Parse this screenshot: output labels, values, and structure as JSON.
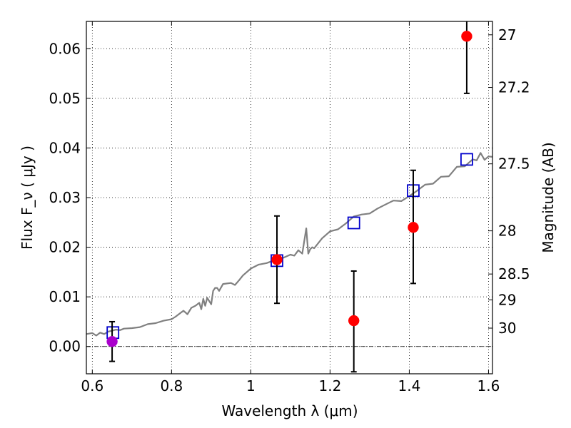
{
  "chart_data": {
    "type": "scatter",
    "xlabel": "Wavelength  λ (μm)",
    "ylabel": "Flux  F_ν  ( μJy )",
    "y2label": "Magnitude (AB)",
    "xlim": [
      0.585,
      1.61
    ],
    "ylim": [
      -0.0055,
      0.0655
    ],
    "grid": true,
    "x_ticks": [
      {
        "value": 0.6,
        "label": "0.6"
      },
      {
        "value": 0.8,
        "label": "0.8"
      },
      {
        "value": 1.0,
        "label": "1"
      },
      {
        "value": 1.2,
        "label": "1.2"
      },
      {
        "value": 1.4,
        "label": "1.4"
      },
      {
        "value": 1.6,
        "label": "1.6"
      }
    ],
    "y_ticks": [
      {
        "value": 0.0,
        "label": "0.00"
      },
      {
        "value": 0.01,
        "label": "0.01"
      },
      {
        "value": 0.02,
        "label": "0.02"
      },
      {
        "value": 0.03,
        "label": "0.03"
      },
      {
        "value": 0.04,
        "label": "0.04"
      },
      {
        "value": 0.05,
        "label": "0.05"
      },
      {
        "value": 0.06,
        "label": "0.06"
      }
    ],
    "y2_ticks": [
      {
        "flux": 0.0628,
        "label": "27"
      },
      {
        "flux": 0.0522,
        "label": "27.2"
      },
      {
        "flux": 0.0368,
        "label": "27.5"
      },
      {
        "flux": 0.0233,
        "label": "28"
      },
      {
        "flux": 0.0146,
        "label": "28.5"
      },
      {
        "flux": 0.0094,
        "label": "29"
      },
      {
        "flux": 0.0037,
        "label": "30"
      }
    ],
    "series": [
      {
        "style": "line",
        "color": "#808080",
        "x": [
          0.585,
          0.6,
          0.61,
          0.62,
          0.63,
          0.64,
          0.65,
          0.66,
          0.67,
          0.68,
          0.7,
          0.72,
          0.74,
          0.76,
          0.78,
          0.8,
          0.81,
          0.82,
          0.83,
          0.84,
          0.85,
          0.86,
          0.87,
          0.875,
          0.88,
          0.885,
          0.89,
          0.9,
          0.905,
          0.91,
          0.915,
          0.92,
          0.93,
          0.94,
          0.95,
          0.96,
          0.97,
          0.98,
          1.0,
          1.02,
          1.04,
          1.06,
          1.07,
          1.08,
          1.1,
          1.11,
          1.12,
          1.13,
          1.14,
          1.145,
          1.15,
          1.155,
          1.16,
          1.18,
          1.2,
          1.22,
          1.24,
          1.26,
          1.28,
          1.3,
          1.32,
          1.34,
          1.36,
          1.38,
          1.4,
          1.42,
          1.44,
          1.46,
          1.48,
          1.5,
          1.52,
          1.54,
          1.56,
          1.57,
          1.58,
          1.59,
          1.6,
          1.61
        ],
        "y": [
          0.0025,
          0.0027,
          0.0022,
          0.0028,
          0.0025,
          0.003,
          0.0032,
          0.0034,
          0.0033,
          0.0036,
          0.0037,
          0.0039,
          0.0045,
          0.0047,
          0.0052,
          0.0055,
          0.006,
          0.0066,
          0.0072,
          0.0065,
          0.0078,
          0.0082,
          0.0088,
          0.0075,
          0.0096,
          0.0082,
          0.0098,
          0.0085,
          0.0112,
          0.0118,
          0.0118,
          0.0112,
          0.0126,
          0.0127,
          0.0128,
          0.0124,
          0.0133,
          0.0143,
          0.0157,
          0.0165,
          0.0168,
          0.0174,
          0.0169,
          0.0178,
          0.0185,
          0.0183,
          0.0194,
          0.0187,
          0.0238,
          0.0187,
          0.0196,
          0.02,
          0.0198,
          0.0218,
          0.0232,
          0.0236,
          0.0248,
          0.0262,
          0.0266,
          0.0268,
          0.0278,
          0.0286,
          0.0294,
          0.0293,
          0.0303,
          0.0314,
          0.0326,
          0.0328,
          0.0342,
          0.0343,
          0.0362,
          0.0363,
          0.0377,
          0.0375,
          0.039,
          0.0376,
          0.0383,
          0.0382
        ]
      },
      {
        "style": "open-square",
        "color": "#0000cc",
        "x": [
          0.652,
          1.066,
          1.26,
          1.41,
          1.545
        ],
        "y": [
          0.0028,
          0.0173,
          0.0249,
          0.0314,
          0.0377
        ]
      },
      {
        "style": "errorbar",
        "color": "#ff0000",
        "x": [
          1.066,
          1.26,
          1.41,
          1.545
        ],
        "y": [
          0.0175,
          0.0052,
          0.024,
          0.0625
        ],
        "yerr_low": [
          0.0088,
          0.0103,
          0.0113,
          0.0115
        ],
        "yerr_high": [
          0.0088,
          0.01,
          0.0115,
          0.0035
        ]
      },
      {
        "style": "errorbar",
        "color": "#aa00cc",
        "x": [
          0.65
        ],
        "y": [
          0.001
        ],
        "yerr_low": [
          0.004
        ],
        "yerr_high": [
          0.004
        ]
      }
    ]
  }
}
